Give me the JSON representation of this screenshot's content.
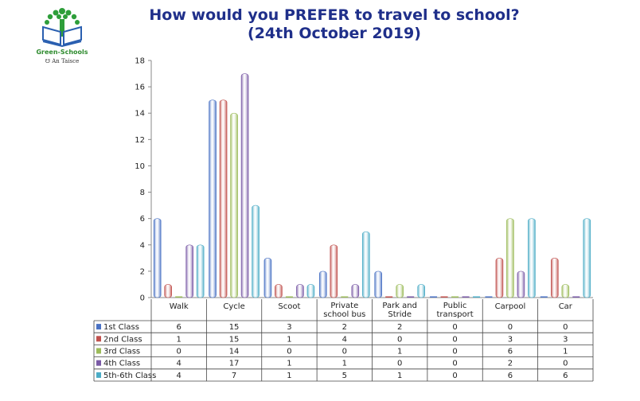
{
  "title_line1": "How would you PREFER to travel to school?",
  "title_line2": "(24th October 2019)",
  "logo": {
    "name": "Green-Schools",
    "org": "An Taisce"
  },
  "chart_data": {
    "type": "bar",
    "categories": [
      "Walk",
      "Cycle",
      "Scoot",
      "Private school bus",
      "Park and Stride",
      "Public transport",
      "Carpool",
      "Car"
    ],
    "category_lines": [
      [
        "Walk"
      ],
      [
        "Cycle"
      ],
      [
        "Scoot"
      ],
      [
        "Private",
        "school bus"
      ],
      [
        "Park and",
        "Stride"
      ],
      [
        "Public",
        "transport"
      ],
      [
        "Carpool"
      ],
      [
        "Car"
      ]
    ],
    "series": [
      {
        "name": "1st Class",
        "color": "#4a72c4",
        "values": [
          6,
          15,
          3,
          2,
          2,
          0,
          0,
          0
        ]
      },
      {
        "name": "2nd Class",
        "color": "#c0504d",
        "values": [
          1,
          15,
          1,
          4,
          0,
          0,
          3,
          3
        ]
      },
      {
        "name": "3rd Class",
        "color": "#9bbb59",
        "values": [
          0,
          14,
          0,
          0,
          1,
          0,
          6,
          1
        ]
      },
      {
        "name": "4th Class",
        "color": "#7a5aa6",
        "values": [
          4,
          17,
          1,
          1,
          0,
          0,
          2,
          0
        ]
      },
      {
        "name": "5th-6th Class",
        "color": "#4bacc6",
        "values": [
          4,
          7,
          1,
          5,
          1,
          0,
          6,
          6
        ]
      }
    ],
    "ylim": [
      0,
      18
    ],
    "yticks": [
      0,
      2,
      4,
      6,
      8,
      10,
      12,
      14,
      16,
      18
    ],
    "grid": false,
    "legend": "data-table"
  }
}
